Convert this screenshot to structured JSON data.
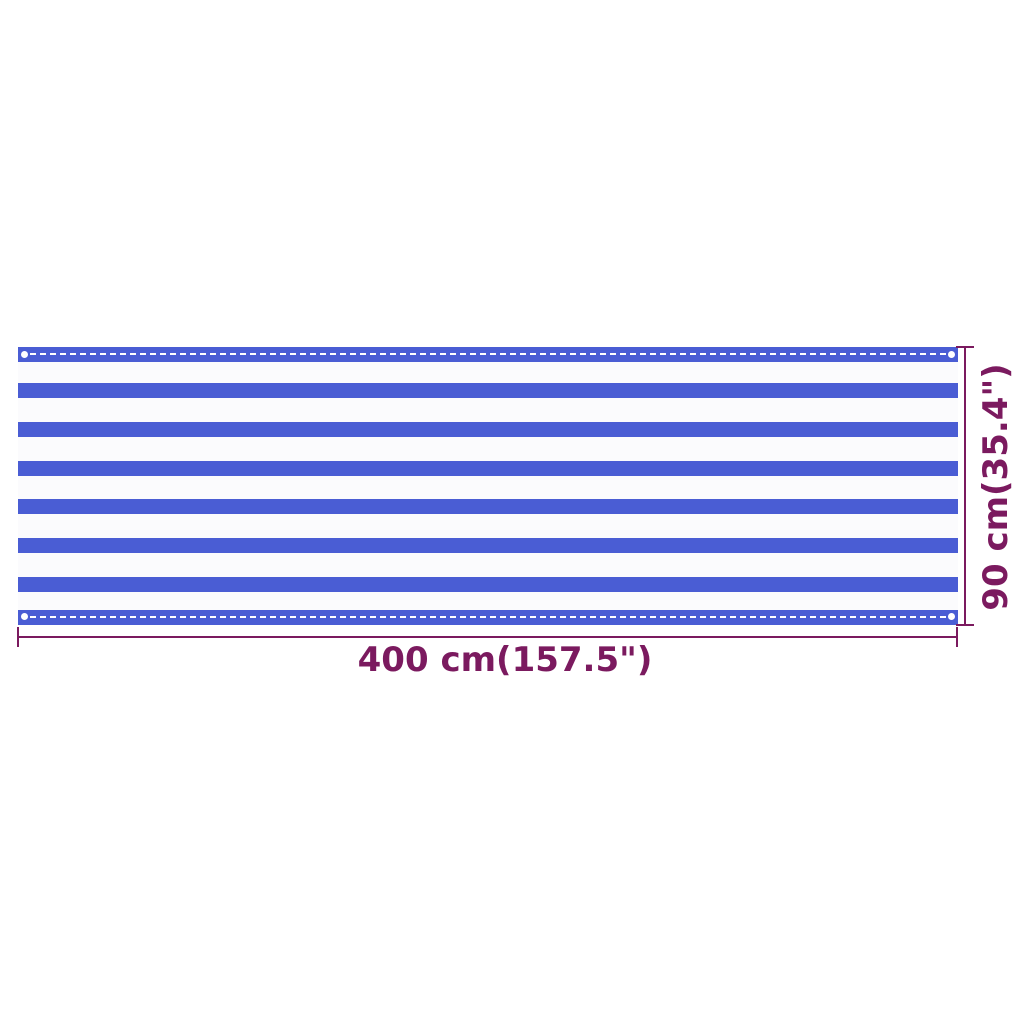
{
  "product": {
    "colors": {
      "stripe": "#4a5dd4",
      "base": "#fbfbfd",
      "dimension": "#7b1a5f"
    },
    "stripe_count": 6
  },
  "dimensions": {
    "width_label": "400 cm(157.5\")",
    "height_label": "90 cm(35.4\")"
  }
}
